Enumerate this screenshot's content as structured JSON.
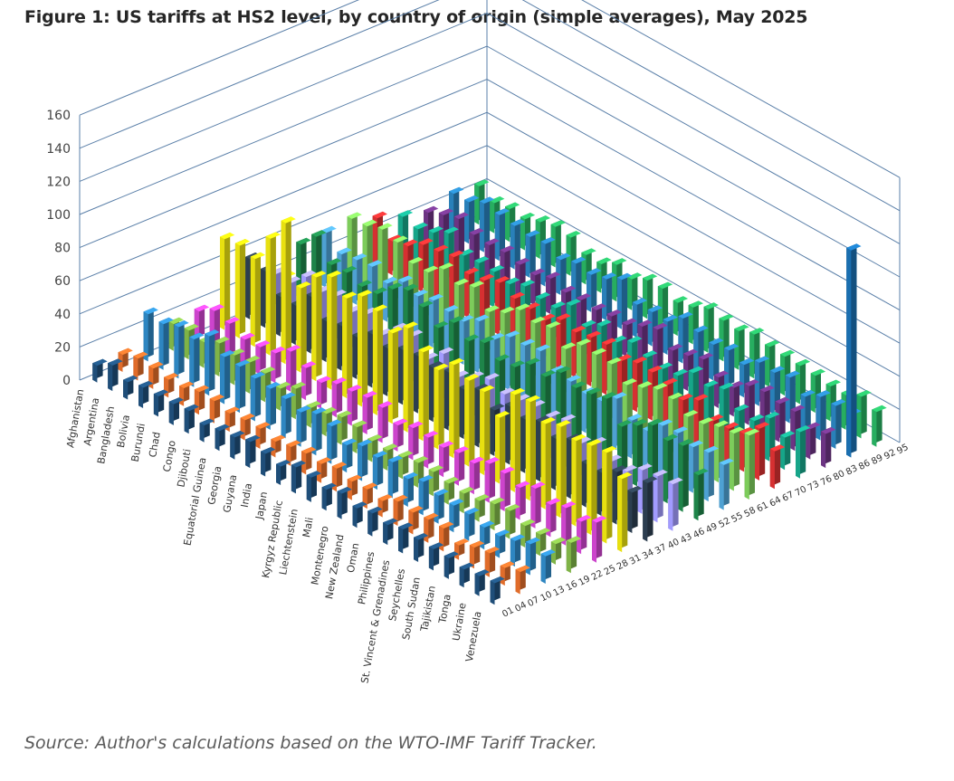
{
  "title": "Figure 1: US tariffs at HS2 level, by country of origin (simple averages), May 2025",
  "source": "Source: Author's calculations based on the WTO-IMF Tariff Tracker.",
  "chart_data": {
    "type": "bar",
    "variant": "3d-column",
    "title": "Figure 1: US tariffs at HS2 level, by country of origin (simple averages), May 2025",
    "zlim": [
      0,
      160
    ],
    "z_ticks": [
      0,
      20,
      40,
      60,
      80,
      100,
      120,
      140,
      160
    ],
    "grid": true,
    "legend": "none",
    "country_tick_labels": [
      "Afghanistan",
      "Argentina",
      "Bangladesh",
      "Bolivia",
      "Burundi",
      "Chad",
      "Congo",
      "Djibouti",
      "Equatorial Guinea",
      "Georgia",
      "Guyana",
      "India",
      "Japan",
      "Kyrgyz Republic",
      "Liechtenstein",
      "Mali",
      "Montenegro",
      "New Zealand",
      "Oman",
      "Philippines",
      "St. Vincent & Grenadines",
      "Seychelles",
      "South Sudan",
      "Tajikistan",
      "Tonga",
      "Ukraine",
      "Venezuela"
    ],
    "hs2_tick_labels": [
      "01",
      "04",
      "07",
      "10",
      "13",
      "16",
      "19",
      "22",
      "25",
      "28",
      "31",
      "34",
      "37",
      "40",
      "43",
      "46",
      "49",
      "52",
      "55",
      "58",
      "61",
      "64",
      "67",
      "70",
      "73",
      "76",
      "80",
      "83",
      "86",
      "89",
      "92",
      "95"
    ],
    "series": [
      {
        "band": "01-06",
        "color": "#1f4e79",
        "values": [
          13,
          13,
          13,
          12,
          13,
          13,
          13,
          12,
          13,
          13,
          13,
          12,
          13,
          13,
          13,
          13,
          13,
          12,
          13,
          13,
          13,
          13,
          12,
          13,
          13,
          13,
          13
        ]
      },
      {
        "band": "07-12",
        "color": "#e06c2a",
        "values": [
          12,
          12,
          12,
          11,
          12,
          12,
          12,
          11,
          12,
          12,
          12,
          11,
          12,
          12,
          12,
          12,
          12,
          11,
          12,
          12,
          12,
          12,
          11,
          12,
          12,
          12,
          12
        ]
      },
      {
        "band": "13-18",
        "color": "#2e86c1",
        "values": [
          36,
          34,
          33,
          31,
          30,
          28,
          27,
          25,
          24,
          23,
          22,
          21,
          20,
          19,
          19,
          18,
          18,
          17,
          17,
          17,
          16,
          16,
          16,
          16,
          16,
          16,
          16
        ]
      },
      {
        "band": "19-24",
        "color": "#7fb347",
        "values": [
          18,
          18,
          17,
          17,
          17,
          16,
          16,
          16,
          16,
          15,
          15,
          15,
          15,
          15,
          15,
          15,
          15,
          15,
          15,
          15,
          15,
          15,
          15,
          15,
          15,
          15,
          15
        ]
      },
      {
        "band": "25-30",
        "color": "#cc44cc",
        "values": [
          20,
          20,
          20,
          20,
          20,
          20,
          20,
          20,
          20,
          20,
          20,
          20,
          20,
          20,
          20,
          20,
          20,
          20,
          20,
          20,
          20,
          20,
          20,
          20,
          20,
          20,
          20
        ]
      },
      {
        "band": "31-36",
        "color": "#e8e010",
        "values": [
          68,
          66,
          64,
          62,
          60,
          59,
          58,
          57,
          56,
          55,
          54,
          54,
          53,
          53,
          52,
          52,
          51,
          51,
          50,
          50,
          50,
          49,
          49,
          49,
          48,
          48,
          48
        ]
      },
      {
        "band": "37-42",
        "color": "#2c3e50",
        "values": [
          30,
          30,
          30,
          30,
          30,
          30,
          30,
          30,
          30,
          30,
          30,
          30,
          30,
          30,
          30,
          30,
          30,
          30,
          30,
          30,
          30,
          30,
          30,
          30,
          30,
          30,
          30
        ]
      },
      {
        "band": "43-48",
        "color": "#a29bfe",
        "values": [
          25,
          25,
          25,
          25,
          25,
          25,
          25,
          25,
          25,
          25,
          25,
          25,
          25,
          25,
          25,
          25,
          25,
          25,
          25,
          25,
          25,
          25,
          25,
          25,
          25,
          25,
          25
        ]
      },
      {
        "band": "49-54",
        "color": "#1e8449",
        "values": [
          35,
          35,
          35,
          35,
          35,
          35,
          35,
          35,
          35,
          35,
          35,
          35,
          35,
          35,
          35,
          35,
          35,
          35,
          35,
          35,
          35,
          35,
          35,
          35,
          35,
          35,
          35
        ]
      },
      {
        "band": "55-60",
        "color": "#4ea1d3",
        "values": [
          28,
          28,
          28,
          28,
          28,
          28,
          28,
          28,
          28,
          28,
          28,
          28,
          28,
          28,
          28,
          28,
          28,
          28,
          28,
          28,
          28,
          28,
          28,
          28,
          28,
          28,
          28
        ]
      },
      {
        "band": "61-66",
        "color": "#7dcc5b",
        "values": [
          32,
          32,
          32,
          32,
          32,
          32,
          32,
          32,
          32,
          32,
          32,
          32,
          32,
          32,
          32,
          32,
          32,
          32,
          32,
          32,
          32,
          32,
          32,
          32,
          32,
          32,
          32
        ]
      },
      {
        "band": "67-72",
        "color": "#d63031",
        "values": [
          26,
          26,
          26,
          26,
          26,
          26,
          26,
          26,
          26,
          26,
          26,
          26,
          26,
          26,
          26,
          26,
          26,
          26,
          26,
          26,
          26,
          26,
          26,
          26,
          26,
          26,
          26
        ]
      },
      {
        "band": "73-78",
        "color": "#17a589",
        "values": [
          24,
          24,
          24,
          24,
          24,
          24,
          24,
          24,
          24,
          24,
          24,
          24,
          24,
          24,
          24,
          24,
          24,
          24,
          24,
          24,
          24,
          24,
          24,
          24,
          24,
          24,
          24
        ]
      },
      {
        "band": "79-84",
        "color": "#6c3483",
        "values": [
          22,
          22,
          22,
          22,
          22,
          22,
          22,
          22,
          22,
          22,
          22,
          22,
          22,
          22,
          22,
          22,
          22,
          22,
          22,
          22,
          22,
          22,
          22,
          22,
          22,
          22,
          22
        ]
      },
      {
        "band": "85-90",
        "color": "#2980b9",
        "values": [
          25,
          25,
          25,
          25,
          25,
          25,
          25,
          25,
          25,
          25,
          25,
          25,
          25,
          25,
          25,
          25,
          25,
          25,
          25,
          25,
          25,
          25,
          25,
          25,
          25,
          25,
          25
        ]
      },
      {
        "band": "91-97",
        "color": "#27ae60",
        "values": [
          22,
          22,
          22,
          22,
          22,
          22,
          22,
          22,
          22,
          22,
          22,
          22,
          22,
          22,
          22,
          22,
          22,
          22,
          22,
          22,
          22,
          22,
          22,
          22,
          22,
          22,
          22
        ]
      }
    ],
    "notable": [
      {
        "band": "85-90",
        "country_index": 26,
        "value": 125,
        "color": "#1a6fb0"
      },
      {
        "band": "31-36",
        "country_index": 4,
        "value": 85,
        "color": "#e8e010"
      }
    ]
  }
}
